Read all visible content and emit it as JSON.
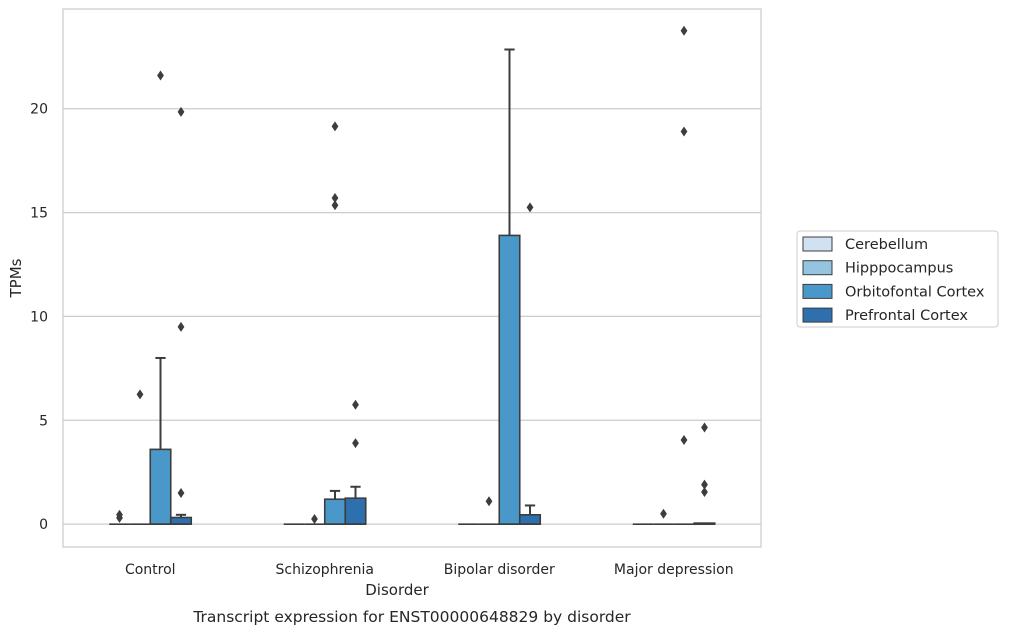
{
  "caption": "Transcript expression for ENST00000648829 by disorder",
  "chart_data": {
    "type": "box",
    "xlabel": "Disorder",
    "ylabel": "TPMs",
    "ylim": [
      -1.1,
      24.8
    ],
    "yticks": [
      0,
      5,
      10,
      15,
      20
    ],
    "grid": true,
    "legend_position": "right",
    "categories": [
      "Control",
      "Schizophrenia",
      "Bipolar disorder",
      "Major depression"
    ],
    "series": [
      {
        "name": "Cerebellum",
        "color": "#d0e1f2",
        "boxes": [
          {
            "q1": 0,
            "median": 0,
            "q3": 0,
            "whisker_low": 0,
            "whisker_high": 0,
            "outliers": [
              0.3,
              0.45
            ]
          },
          {
            "q1": 0,
            "median": 0,
            "q3": 0,
            "whisker_low": 0,
            "whisker_high": 0,
            "outliers": []
          },
          {
            "q1": 0,
            "median": 0,
            "q3": 0,
            "whisker_low": 0,
            "whisker_high": 0,
            "outliers": []
          },
          {
            "q1": 0,
            "median": 0,
            "q3": 0,
            "whisker_low": 0,
            "whisker_high": 0,
            "outliers": []
          }
        ]
      },
      {
        "name": "Hipppocampus",
        "color": "#94c4df",
        "boxes": [
          {
            "q1": 0,
            "median": 0,
            "q3": 0,
            "whisker_low": 0,
            "whisker_high": 0,
            "outliers": [
              6.25
            ]
          },
          {
            "q1": 0,
            "median": 0,
            "q3": 0,
            "whisker_low": 0,
            "whisker_high": 0,
            "outliers": [
              0.25
            ]
          },
          {
            "q1": 0,
            "median": 0,
            "q3": 0,
            "whisker_low": 0,
            "whisker_high": 0,
            "outliers": [
              1.1
            ]
          },
          {
            "q1": 0,
            "median": 0,
            "q3": 0,
            "whisker_low": 0,
            "whisker_high": 0,
            "outliers": [
              0.5
            ]
          }
        ]
      },
      {
        "name": "Orbitofontal Cortex",
        "color": "#4a98c9",
        "boxes": [
          {
            "q1": 0,
            "median": 0,
            "q3": 3.6,
            "whisker_low": 0,
            "whisker_high": 8.0,
            "outliers": [
              21.6
            ]
          },
          {
            "q1": 0,
            "median": 0,
            "q3": 1.2,
            "whisker_low": 0,
            "whisker_high": 1.6,
            "outliers": [
              19.15,
              15.7,
              15.35
            ]
          },
          {
            "q1": 0,
            "median": 0,
            "q3": 13.9,
            "whisker_low": 0,
            "whisker_high": 22.85,
            "outliers": []
          },
          {
            "q1": 0,
            "median": 0,
            "q3": 0,
            "whisker_low": 0,
            "whisker_high": 0,
            "outliers": [
              23.75,
              18.9,
              4.05
            ]
          }
        ]
      },
      {
        "name": "Prefrontal Cortex",
        "color": "#2e6fae",
        "boxes": [
          {
            "q1": 0,
            "median": 0,
            "q3": 0.32,
            "whisker_low": 0,
            "whisker_high": 0.45,
            "outliers": [
              19.85,
              9.5,
              1.5
            ]
          },
          {
            "q1": 0,
            "median": 0,
            "q3": 1.25,
            "whisker_low": 0,
            "whisker_high": 1.8,
            "outliers": [
              5.75,
              3.9
            ]
          },
          {
            "q1": 0,
            "median": 0,
            "q3": 0.45,
            "whisker_low": 0,
            "whisker_high": 0.9,
            "outliers": [
              15.25
            ]
          },
          {
            "q1": 0,
            "median": 0,
            "q3": 0.05,
            "whisker_low": 0,
            "whisker_high": 0.05,
            "outliers": [
              4.65,
              1.9,
              1.55
            ]
          }
        ]
      }
    ]
  }
}
